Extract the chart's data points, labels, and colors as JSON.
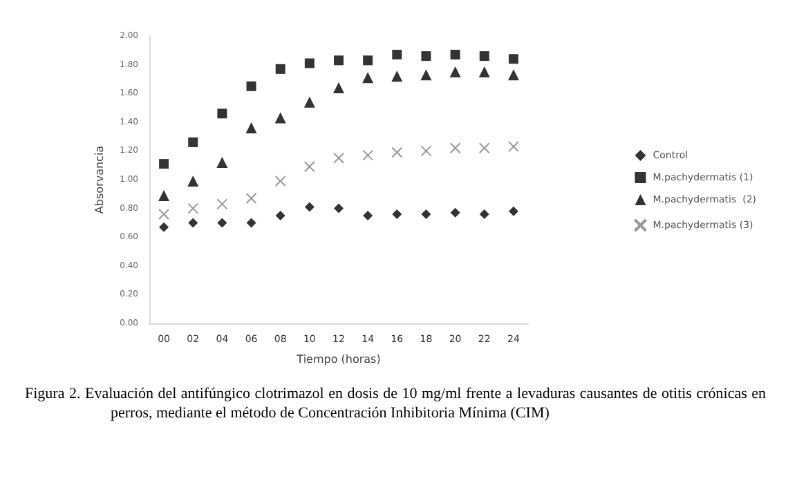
{
  "chart_data": {
    "type": "scatter",
    "xlabel": "Tiempo (horas)",
    "ylabel": "Absorvancia",
    "categories": [
      "00",
      "02",
      "04",
      "06",
      "08",
      "10",
      "12",
      "14",
      "16",
      "18",
      "20",
      "22",
      "24"
    ],
    "series": [
      {
        "name": "Control",
        "color": "#000000",
        "marker": "diamond",
        "values": [
          0.67,
          0.7,
          0.7,
          0.7,
          0.75,
          0.81,
          0.8,
          0.75,
          0.76,
          0.76,
          0.77,
          0.76,
          0.78
        ]
      },
      {
        "name": "M.pachydermatis (1)",
        "color": "#000000",
        "marker": "square",
        "values": [
          1.11,
          1.26,
          1.46,
          1.65,
          1.77,
          1.81,
          1.83,
          1.83,
          1.87,
          1.86,
          1.87,
          1.86,
          1.84
        ]
      },
      {
        "name": "M.pachydermatis  (2)",
        "color": "#000000",
        "marker": "triangle",
        "values": [
          0.89,
          0.99,
          1.12,
          1.36,
          1.43,
          1.54,
          1.64,
          1.71,
          1.72,
          1.73,
          1.75,
          1.75,
          1.73
        ]
      },
      {
        "name": "M.pachydermatis (3)",
        "color": "#808080",
        "marker": "cross",
        "values": [
          0.76,
          0.8,
          0.83,
          0.87,
          0.99,
          1.09,
          1.15,
          1.17,
          1.19,
          1.2,
          1.22,
          1.22,
          1.23
        ]
      }
    ],
    "ylim": [
      0,
      2
    ],
    "yticks": [
      {
        "value": 0,
        "label": "0.00"
      },
      {
        "value": 0.2,
        "label": "0.20"
      },
      {
        "value": 0.4,
        "label": "0.40"
      },
      {
        "value": 0.6,
        "label": "0.60"
      },
      {
        "value": 0.8,
        "label": "0.80"
      },
      {
        "value": 1.0,
        "label": "1.00"
      },
      {
        "value": 1.2,
        "label": "1.20"
      },
      {
        "value": 1.4,
        "label": "1.40"
      },
      {
        "value": 1.6,
        "label": "1.60"
      },
      {
        "value": 1.8,
        "label": "1.80"
      },
      {
        "value": 2.0,
        "label": "2.00"
      }
    ],
    "grid": false,
    "legend": "right",
    "annotations": [
      "Figura 2.  Evaluación del antifúngico clotrimazol en dosis de 10 mg/ml frente a levaduras causantes de otitis crónicas en perros, mediante el método de Concentración Inhibitoria Mínima (CIM)"
    ]
  }
}
